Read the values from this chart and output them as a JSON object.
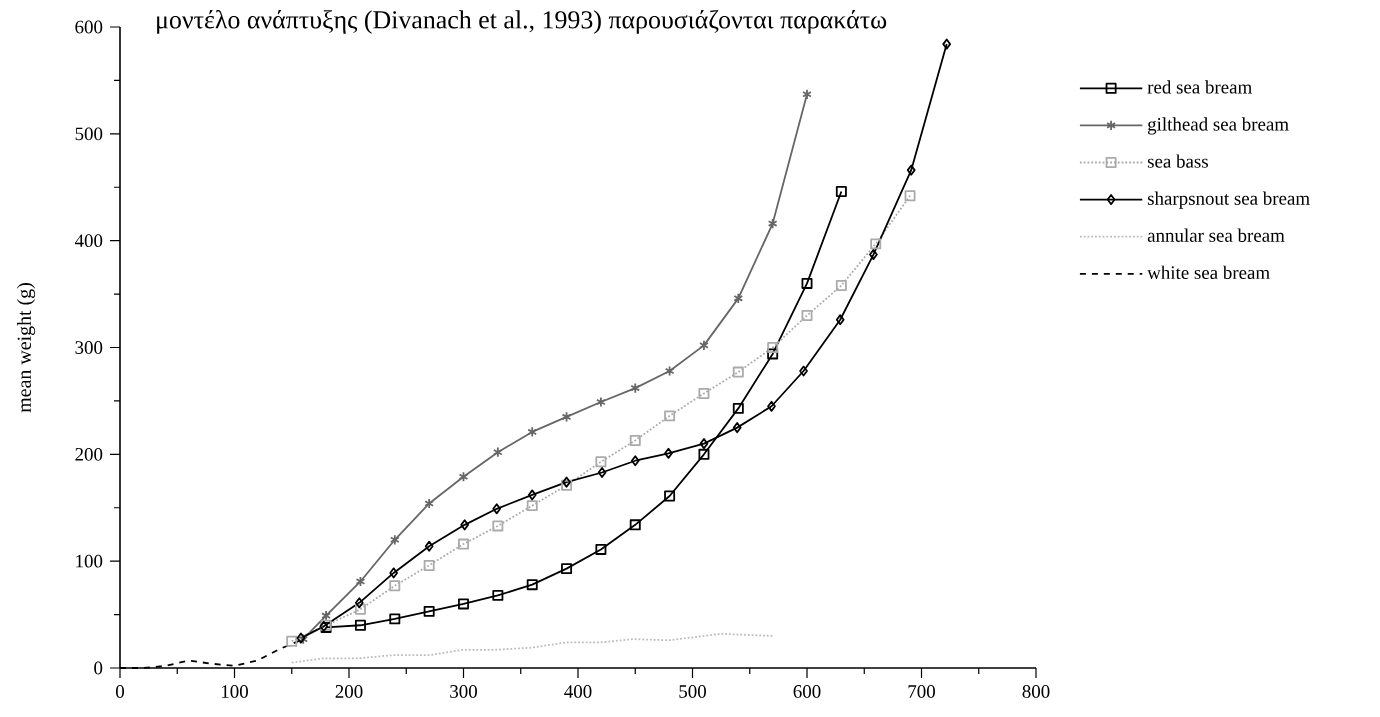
{
  "chart_data": {
    "type": "line",
    "title": "μοντέλο ανάπτυξης (Divanach et al., 1993) παρουσιάζονται παρακάτω",
    "ylabel": "mean weight (g)",
    "xlim": [
      0,
      800
    ],
    "ylim": [
      0,
      600
    ],
    "xticks": [
      0,
      100,
      200,
      300,
      400,
      500,
      600,
      700,
      800
    ],
    "yticks": [
      0,
      100,
      200,
      300,
      400,
      500,
      600
    ],
    "grid": false,
    "legend": "right",
    "series": [
      {
        "name": "red sea bream",
        "color": "#000000",
        "marker": "square",
        "line_style": "solid",
        "x": [
          180,
          210,
          240,
          270,
          300,
          330,
          360,
          390,
          420,
          450,
          480,
          510,
          540,
          570,
          600,
          630
        ],
        "values": [
          38,
          40,
          46,
          53,
          60,
          68,
          78,
          93,
          111,
          134,
          161,
          200,
          243,
          294,
          360,
          446
        ]
      },
      {
        "name": "gilthead sea bream",
        "color": "#666666",
        "marker": "cross",
        "line_style": "solid",
        "x": [
          160,
          180,
          210,
          240,
          270,
          300,
          330,
          360,
          390,
          420,
          450,
          480,
          510,
          540,
          570,
          600
        ],
        "values": [
          27,
          49,
          81,
          120,
          154,
          179,
          202,
          221,
          235,
          249,
          262,
          278,
          302,
          346,
          416,
          537
        ]
      },
      {
        "name": "sea bass",
        "color": "#aaaaaa",
        "marker": "square",
        "line_style": "dotted",
        "x": [
          150,
          180,
          210,
          240,
          270,
          300,
          330,
          360,
          390,
          420,
          450,
          480,
          510,
          540,
          570,
          600,
          630,
          660,
          690
        ],
        "values": [
          25,
          40,
          55,
          77,
          96,
          116,
          133,
          152,
          171,
          193,
          213,
          236,
          257,
          277,
          300,
          330,
          358,
          397,
          442
        ]
      },
      {
        "name": "sharpsnout sea bream",
        "color": "#000000",
        "marker": "diamond",
        "line_style": "solid",
        "x": [
          158,
          178,
          209,
          239,
          270,
          301,
          329,
          360,
          390,
          421,
          450,
          479,
          510,
          539,
          569,
          597,
          629,
          658,
          691,
          722
        ],
        "values": [
          28,
          39,
          61,
          89,
          114,
          134,
          149,
          162,
          174,
          183,
          194,
          201,
          210,
          225,
          245,
          278,
          326,
          387,
          466,
          584
        ]
      },
      {
        "name": "annular sea bream",
        "color": "#bbbbbb",
        "marker": "none",
        "line_style": "dotted",
        "x": [
          150,
          178,
          208,
          238,
          270,
          299,
          327,
          359,
          390,
          420,
          448,
          480,
          525,
          570
        ],
        "values": [
          5,
          9,
          9,
          12,
          12,
          17,
          17,
          19,
          24,
          24,
          27,
          26,
          32,
          30
        ]
      },
      {
        "name": "white sea bream",
        "color": "#000000",
        "marker": "none",
        "line_style": "dashed",
        "x": [
          0,
          20,
          40,
          60,
          80,
          100,
          120,
          140,
          160
        ],
        "values": [
          0,
          0,
          2,
          7,
          4,
          2,
          7,
          18,
          27
        ]
      }
    ]
  }
}
